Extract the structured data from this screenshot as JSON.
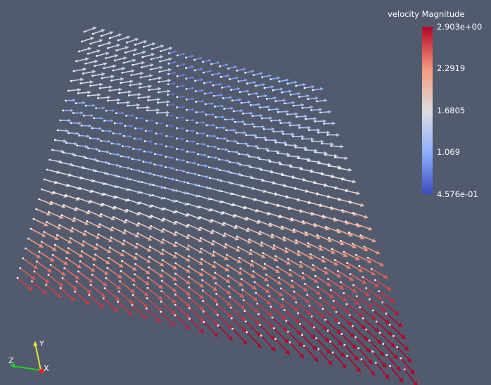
{
  "legend": {
    "title": "velocity Magnitude",
    "max_label": "2.903e+00",
    "tick1_label": "2.2919",
    "tick2_label": "1.6805",
    "tick3_label": "1.069",
    "min_label": "4.576e-01",
    "colors": {
      "high": "#b40426",
      "upper": "#f4987a",
      "mid": "#dddddd",
      "lower": "#8db0fe",
      "low": "#3b4cc0"
    },
    "range": [
      0.4576,
      2.903
    ]
  },
  "orientation_axes": {
    "x_label": "X",
    "y_label": "Y",
    "z_label": "Z",
    "x_color": "#ff2020",
    "y_color": "#e6e632",
    "z_color": "#20d020"
  },
  "scene": {
    "background": "#525a6e",
    "glyph": "arrow-icon",
    "point_marker": "white-square"
  }
}
